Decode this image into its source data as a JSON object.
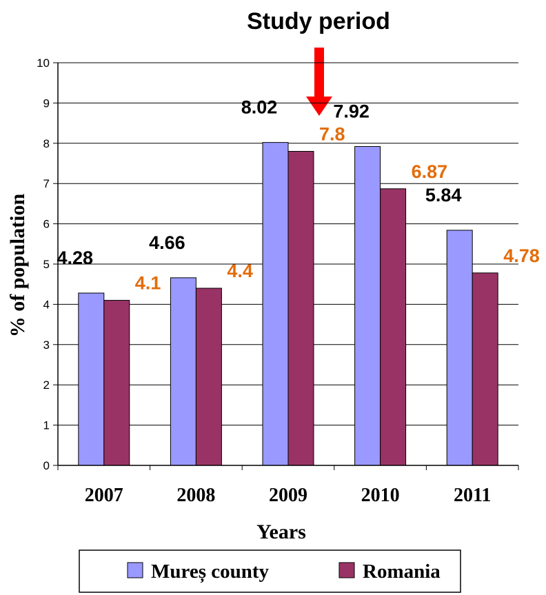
{
  "chart_data": {
    "type": "bar",
    "annotation": "Study period",
    "annotation_arrow_color": "#ff0000",
    "categories": [
      "2007",
      "2008",
      "2009",
      "2010",
      "2011"
    ],
    "series": [
      {
        "name": "Mureș county",
        "values": [
          4.28,
          4.66,
          8.02,
          7.92,
          5.84
        ],
        "color": "#9999ff",
        "label_color": "#000000"
      },
      {
        "name": "Romania",
        "values": [
          4.1,
          4.4,
          7.8,
          6.87,
          4.78
        ],
        "color": "#993366",
        "label_color": "#e36c0a"
      }
    ],
    "data_labels": [
      [
        "4.28",
        "4.66",
        "8.02",
        "7.92",
        "5.84"
      ],
      [
        "4.1",
        "4.4",
        "7.8",
        "6.87",
        "4.78"
      ]
    ],
    "xlabel": "Years",
    "ylabel": "% of population",
    "ylim": [
      0,
      10
    ],
    "yticks": [
      "0",
      "1",
      "2",
      "3",
      "4",
      "5",
      "6",
      "7",
      "8",
      "9",
      "10"
    ],
    "grid": true,
    "legend_position": "bottom"
  }
}
